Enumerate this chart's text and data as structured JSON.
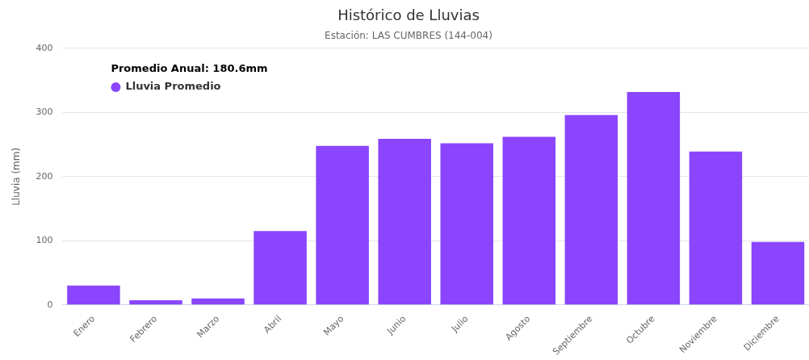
{
  "chart_data": {
    "type": "bar",
    "title": "Histórico de Lluvias",
    "subtitle": "Estación: LAS CUMBRES (144-004)",
    "ylabel": "Lluvia (mm)",
    "legend_title": "Promedio Anual: 180.6mm",
    "categories": [
      "Enero",
      "Febrero",
      "Marzo",
      "Abril",
      "Mayo",
      "Junio",
      "Julio",
      "Agosto",
      "Septiembre",
      "Octubre",
      "Noviembre",
      "Diciembre"
    ],
    "series": [
      {
        "name": "Lluvia Promedio",
        "color": "#8a45fd",
        "values": [
          30,
          7,
          10,
          115,
          248,
          259,
          252,
          262,
          296,
          332,
          239,
          98
        ]
      }
    ],
    "ylim": [
      0,
      400
    ],
    "yticks": [
      0,
      100,
      200,
      300,
      400
    ],
    "grid": "y",
    "legend": "top left"
  }
}
